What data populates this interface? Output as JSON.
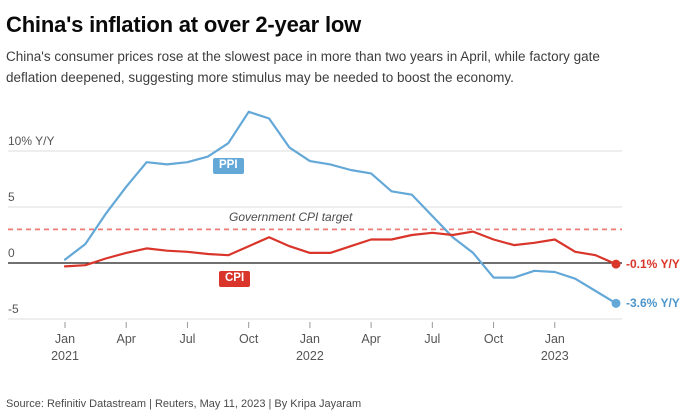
{
  "header": {
    "title": "China's inflation at over 2-year low",
    "subtitle": "China's consumer prices rose at the slowest pace in more than two years in April, while factory gate deflation deepened, suggesting more stimulus may be needed to boost the economy."
  },
  "chart_data": {
    "type": "line",
    "title": "China's inflation at over 2-year low",
    "x": [
      "Jan 2021",
      "Feb 2021",
      "Mar 2021",
      "Apr 2021",
      "May 2021",
      "Jun 2021",
      "Jul 2021",
      "Aug 2021",
      "Sep 2021",
      "Oct 2021",
      "Nov 2021",
      "Dec 2021",
      "Jan 2022",
      "Feb 2022",
      "Mar 2022",
      "Apr 2022",
      "May 2022",
      "Jun 2022",
      "Jul 2022",
      "Aug 2022",
      "Sep 2022",
      "Oct 2022",
      "Nov 2022",
      "Dec 2022",
      "Jan 2023",
      "Feb 2023",
      "Mar 2023",
      "Apr 2023"
    ],
    "series": [
      {
        "name": "PPI",
        "color": "#64a8d8",
        "end_label": "-3.6% Y/Y",
        "values": [
          0.3,
          1.7,
          4.4,
          6.8,
          9.0,
          8.8,
          9.0,
          9.5,
          10.7,
          13.5,
          12.9,
          10.3,
          9.1,
          8.8,
          8.3,
          8.0,
          6.4,
          6.1,
          4.2,
          2.3,
          0.9,
          -1.3,
          -1.3,
          -0.7,
          -0.8,
          -1.4,
          -2.5,
          -3.6
        ]
      },
      {
        "name": "CPI",
        "color": "#d9352a",
        "end_label": "-0.1% Y/Y",
        "values": [
          -0.3,
          -0.2,
          0.4,
          0.9,
          1.3,
          1.1,
          1.0,
          0.8,
          0.7,
          1.5,
          2.3,
          1.5,
          0.9,
          0.9,
          1.5,
          2.1,
          2.1,
          2.5,
          2.7,
          2.5,
          2.8,
          2.1,
          1.6,
          1.8,
          2.1,
          1.0,
          0.7,
          -0.1
        ]
      }
    ],
    "target_line": {
      "value": 3,
      "label": "Government CPI target",
      "color": "#ef7b76",
      "style": "dashed"
    },
    "y_ticks": [
      {
        "value": 10,
        "label": "10% Y/Y"
      },
      {
        "value": 5,
        "label": "5"
      },
      {
        "value": 0,
        "label": "0"
      },
      {
        "value": -5,
        "label": "-5"
      }
    ],
    "x_ticks": [
      {
        "i": 0,
        "month": "Jan",
        "year": "2021"
      },
      {
        "i": 3,
        "month": "Apr"
      },
      {
        "i": 6,
        "month": "Jul"
      },
      {
        "i": 9,
        "month": "Oct"
      },
      {
        "i": 12,
        "month": "Jan",
        "year": "2022"
      },
      {
        "i": 15,
        "month": "Apr"
      },
      {
        "i": 18,
        "month": "Jul"
      },
      {
        "i": 21,
        "month": "Oct"
      },
      {
        "i": 24,
        "month": "Jan",
        "year": "2023"
      }
    ],
    "ylim": [
      -5.5,
      14.5
    ],
    "grid": "horizontal",
    "legend_position": "inline-labels"
  },
  "footer": {
    "source": "Source: Refinitiv Datastream | Reuters, May 11, 2023 | By Kripa Jayaram"
  }
}
